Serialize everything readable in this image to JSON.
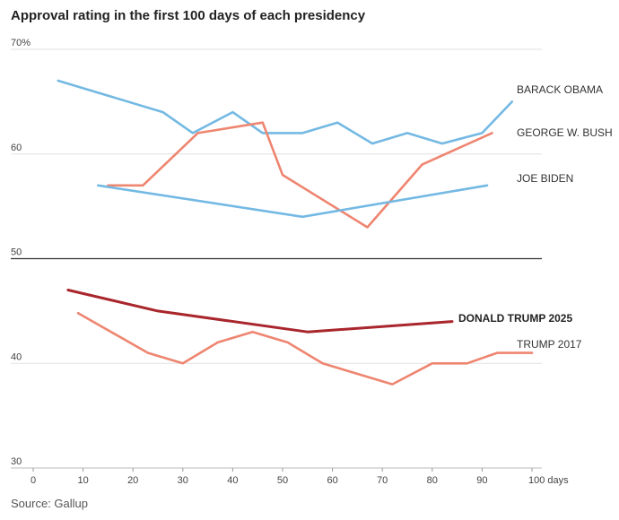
{
  "chart_data": {
    "type": "line",
    "title": "Approval rating in the first 100 days of each presidency",
    "xlabel": "",
    "ylabel": "",
    "xlim": [
      0,
      100
    ],
    "ylim": [
      30,
      70
    ],
    "x_ticks": [
      0,
      10,
      20,
      30,
      40,
      50,
      60,
      70,
      80,
      90,
      100
    ],
    "x_tick_labels": [
      "0",
      "10",
      "20",
      "30",
      "40",
      "50",
      "60",
      "70",
      "80",
      "90",
      "100 days"
    ],
    "y_ticks": [
      30,
      40,
      50,
      60,
      70
    ],
    "y_tick_labels": [
      "30",
      "40",
      "50",
      "60",
      "70%"
    ],
    "reference_line": 50,
    "grid": true,
    "series": [
      {
        "name": "BARACK OBAMA",
        "color": "#74b9e3",
        "bold": false,
        "x": [
          5,
          26,
          32,
          40,
          46,
          54,
          61,
          68,
          75,
          82,
          90,
          96
        ],
        "y": [
          67,
          64,
          62,
          64,
          62,
          62,
          63,
          61,
          62,
          61,
          62,
          65
        ]
      },
      {
        "name": "GEORGE W. BUSH",
        "color": "#ee8570",
        "bold": false,
        "x": [
          15,
          22,
          33,
          46,
          50,
          67,
          78,
          92
        ],
        "y": [
          57,
          57,
          62,
          63,
          58,
          53,
          59,
          62
        ]
      },
      {
        "name": "JOE BIDEN",
        "color": "#74b9e3",
        "bold": false,
        "x": [
          13,
          54,
          91
        ],
        "y": [
          57,
          54,
          57
        ]
      },
      {
        "name": "DONALD TRUMP 2025",
        "color": "#a8262c",
        "bold": true,
        "x": [
          7,
          25,
          55,
          84
        ],
        "y": [
          47,
          45,
          43,
          44
        ]
      },
      {
        "name": "TRUMP 2017",
        "color": "#ee8570",
        "bold": false,
        "x": [
          9,
          23,
          30,
          37,
          44,
          51,
          58,
          72,
          80,
          87,
          93,
          100
        ],
        "y": [
          44.8,
          41,
          40,
          42,
          43,
          42,
          40,
          38,
          40,
          40,
          41,
          41
        ]
      }
    ]
  },
  "source": "Source: Gallup"
}
